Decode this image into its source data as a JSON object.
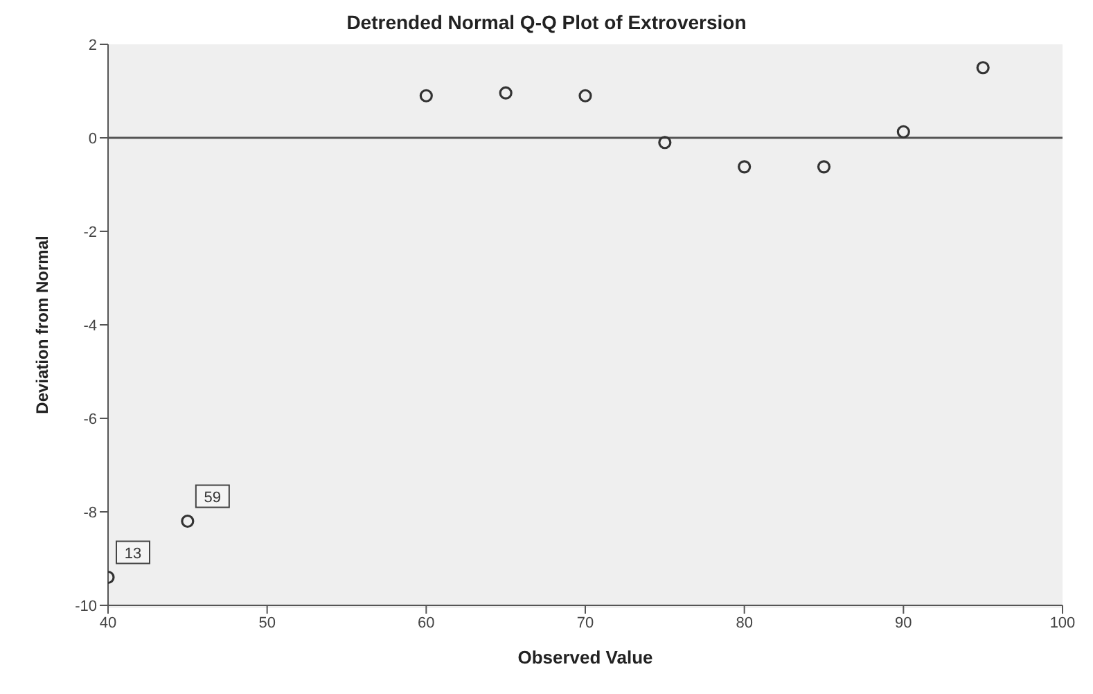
{
  "chart_data": {
    "type": "scatter",
    "title": "Detrended Normal Q-Q Plot of Extroversion",
    "xlabel": "Observed Value",
    "ylabel": "Deviation from Normal",
    "x": [
      40,
      45,
      60,
      65,
      70,
      75,
      80,
      85,
      90,
      95
    ],
    "values": [
      -9.4,
      -8.2,
      0.9,
      0.96,
      0.9,
      -0.1,
      -0.62,
      -0.62,
      0.13,
      1.5
    ],
    "color": "#333333",
    "marker": "circle",
    "xlim": [
      40,
      100
    ],
    "xticks": [
      40,
      50,
      60,
      70,
      80,
      90,
      100
    ],
    "ylim": [
      -10,
      2
    ],
    "yticks": [
      -10,
      -8,
      -6,
      -4,
      -2,
      0,
      2
    ],
    "grid": false,
    "ref_lines": [
      {
        "axis": "y",
        "value": 0,
        "color": "#555555"
      }
    ],
    "annotations": [
      {
        "text": "13",
        "x": 40,
        "y": -9.4
      },
      {
        "text": "59",
        "x": 45,
        "y": -8.2
      }
    ]
  }
}
